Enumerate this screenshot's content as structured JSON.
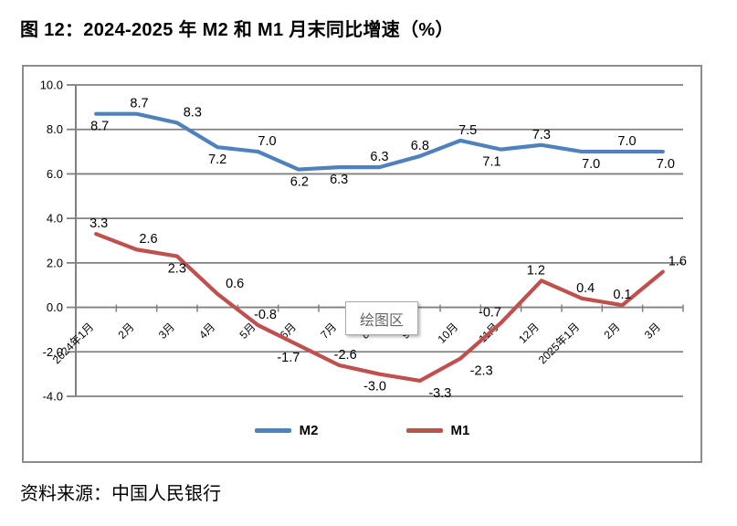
{
  "title": "图 12：2024-2025 年 M2 和 M1 月末同比增速（%）",
  "source": "资料来源：中国人民银行",
  "plot_area_tooltip": "绘图区",
  "colors": {
    "m2_line": "#4F81BD",
    "m1_line": "#C0504D",
    "grid": "#808080",
    "frame_border": "#8c8c8c",
    "tooltip_text": "#666666"
  },
  "legend": [
    {
      "name": "M2",
      "color": "#4F81BD"
    },
    {
      "name": "M1",
      "color": "#C0504D"
    }
  ],
  "chart_data": {
    "type": "line",
    "title": "",
    "xlabel": "",
    "ylabel": "",
    "categories": [
      "2024年1月",
      "2月",
      "3月",
      "4月",
      "5月",
      "6月",
      "7月",
      "8月",
      "9月",
      "10月",
      "11月",
      "12月",
      "2025年1月",
      "2月",
      "3月"
    ],
    "series": [
      {
        "name": "M2",
        "color": "#4F81BD",
        "values": [
          8.7,
          8.7,
          8.3,
          7.2,
          7.0,
          6.2,
          6.3,
          6.3,
          6.8,
          7.5,
          7.1,
          7.3,
          7.0,
          7.0,
          7.0
        ],
        "label_sides": [
          "below",
          "above",
          "above",
          "below",
          "above",
          "below",
          "below",
          "above",
          "above",
          "above",
          "below",
          "above",
          "below",
          "above",
          "below"
        ],
        "label_dx": [
          4,
          3,
          17,
          0,
          10,
          1,
          0,
          0,
          0,
          8,
          -10,
          0,
          10,
          5,
          3
        ]
      },
      {
        "name": "M1",
        "color": "#C0504D",
        "values": [
          3.3,
          2.6,
          2.3,
          0.6,
          -0.8,
          -1.7,
          -2.6,
          -3.0,
          -3.3,
          -2.3,
          -0.7,
          1.2,
          0.4,
          0.1,
          1.6
        ],
        "label_sides": [
          "above",
          "above",
          "below",
          "above",
          "above",
          "below",
          "above",
          "below",
          "below",
          "below",
          "above",
          "above",
          "above",
          "above",
          "above"
        ],
        "label_dx": [
          3,
          13,
          0,
          19,
          8,
          -11,
          7,
          -5,
          22,
          23,
          -12,
          -6,
          4,
          0,
          16
        ]
      }
    ],
    "ylim": [
      -4,
      10
    ],
    "ytick_step": 2,
    "ytick_labels": [
      "10.0",
      "8.0",
      "6.0",
      "4.0",
      "2.0",
      "0.0",
      "-2.0",
      "-4.0"
    ],
    "grid": true,
    "legend_position": "bottom"
  }
}
